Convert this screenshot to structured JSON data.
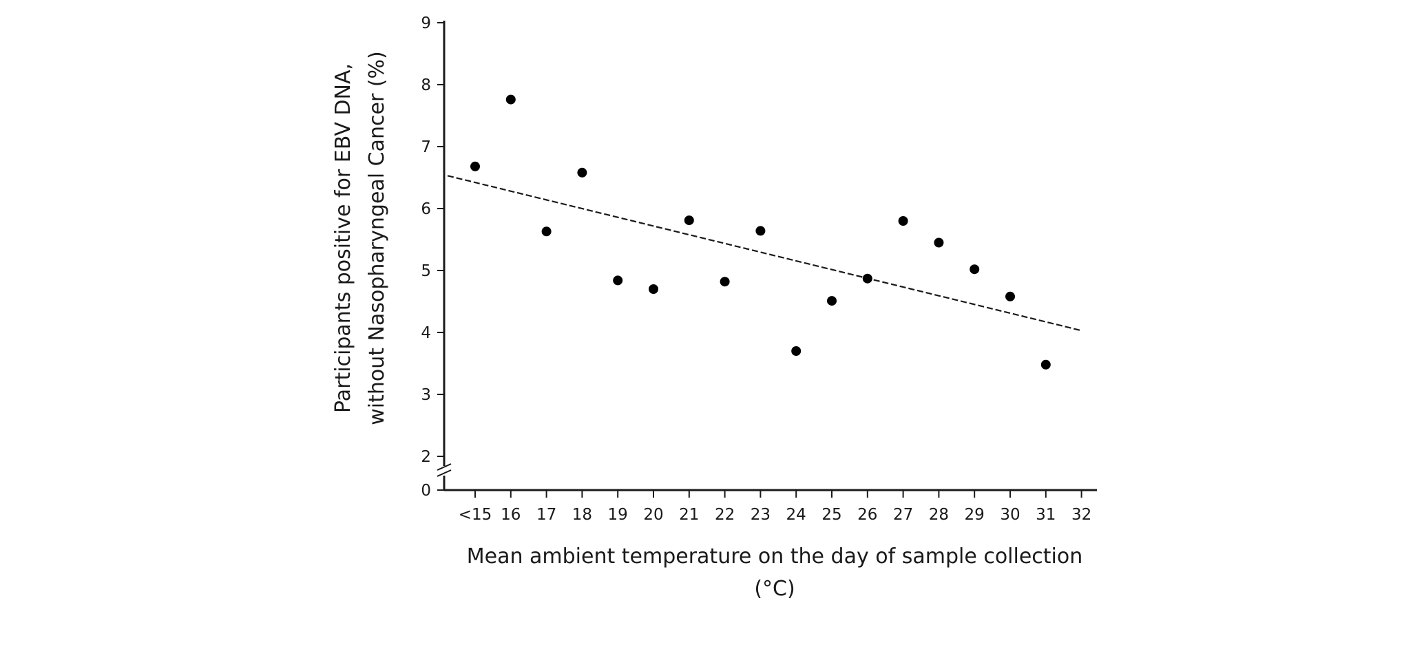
{
  "chart_data": {
    "type": "scatter",
    "title": "",
    "xlabel_lines": [
      "Mean ambient temperature on the day of sample collection",
      "(°C)"
    ],
    "ylabel_lines": [
      "Participants positive for EBV DNA,",
      "without Nasopharyngeal Cancer (%)"
    ],
    "x_categories": [
      "<15",
      "16",
      "17",
      "18",
      "19",
      "20",
      "21",
      "22",
      "23",
      "24",
      "25",
      "26",
      "27",
      "28",
      "29",
      "30",
      "31",
      "32"
    ],
    "y_ticks": [
      "0",
      "2",
      "3",
      "4",
      "5",
      "6",
      "7",
      "8",
      "9"
    ],
    "ylim": [
      2,
      9
    ],
    "y_axis_break": true,
    "points": [
      {
        "x": "<15",
        "y": 6.68
      },
      {
        "x": "16",
        "y": 7.76
      },
      {
        "x": "17",
        "y": 5.63
      },
      {
        "x": "18",
        "y": 6.58
      },
      {
        "x": "19",
        "y": 4.84
      },
      {
        "x": "20",
        "y": 4.7
      },
      {
        "x": "21",
        "y": 5.81
      },
      {
        "x": "22",
        "y": 4.82
      },
      {
        "x": "23",
        "y": 5.64
      },
      {
        "x": "24",
        "y": 3.7
      },
      {
        "x": "25",
        "y": 4.51
      },
      {
        "x": "26",
        "y": 4.87
      },
      {
        "x": "27",
        "y": 5.8
      },
      {
        "x": "28",
        "y": 5.45
      },
      {
        "x": "29",
        "y": 5.02
      },
      {
        "x": "30",
        "y": 4.58
      },
      {
        "x": "31",
        "y": 3.48
      }
    ],
    "trendline": {
      "style": "dashed",
      "start": {
        "x": "<15",
        "y": 6.53
      },
      "end": {
        "x": "32",
        "y": 4.03
      }
    },
    "grid": false,
    "legend": "none",
    "colors": {
      "points": "#000000",
      "axes": "#1a1a1a",
      "trendline": "#1a1a1a"
    }
  }
}
